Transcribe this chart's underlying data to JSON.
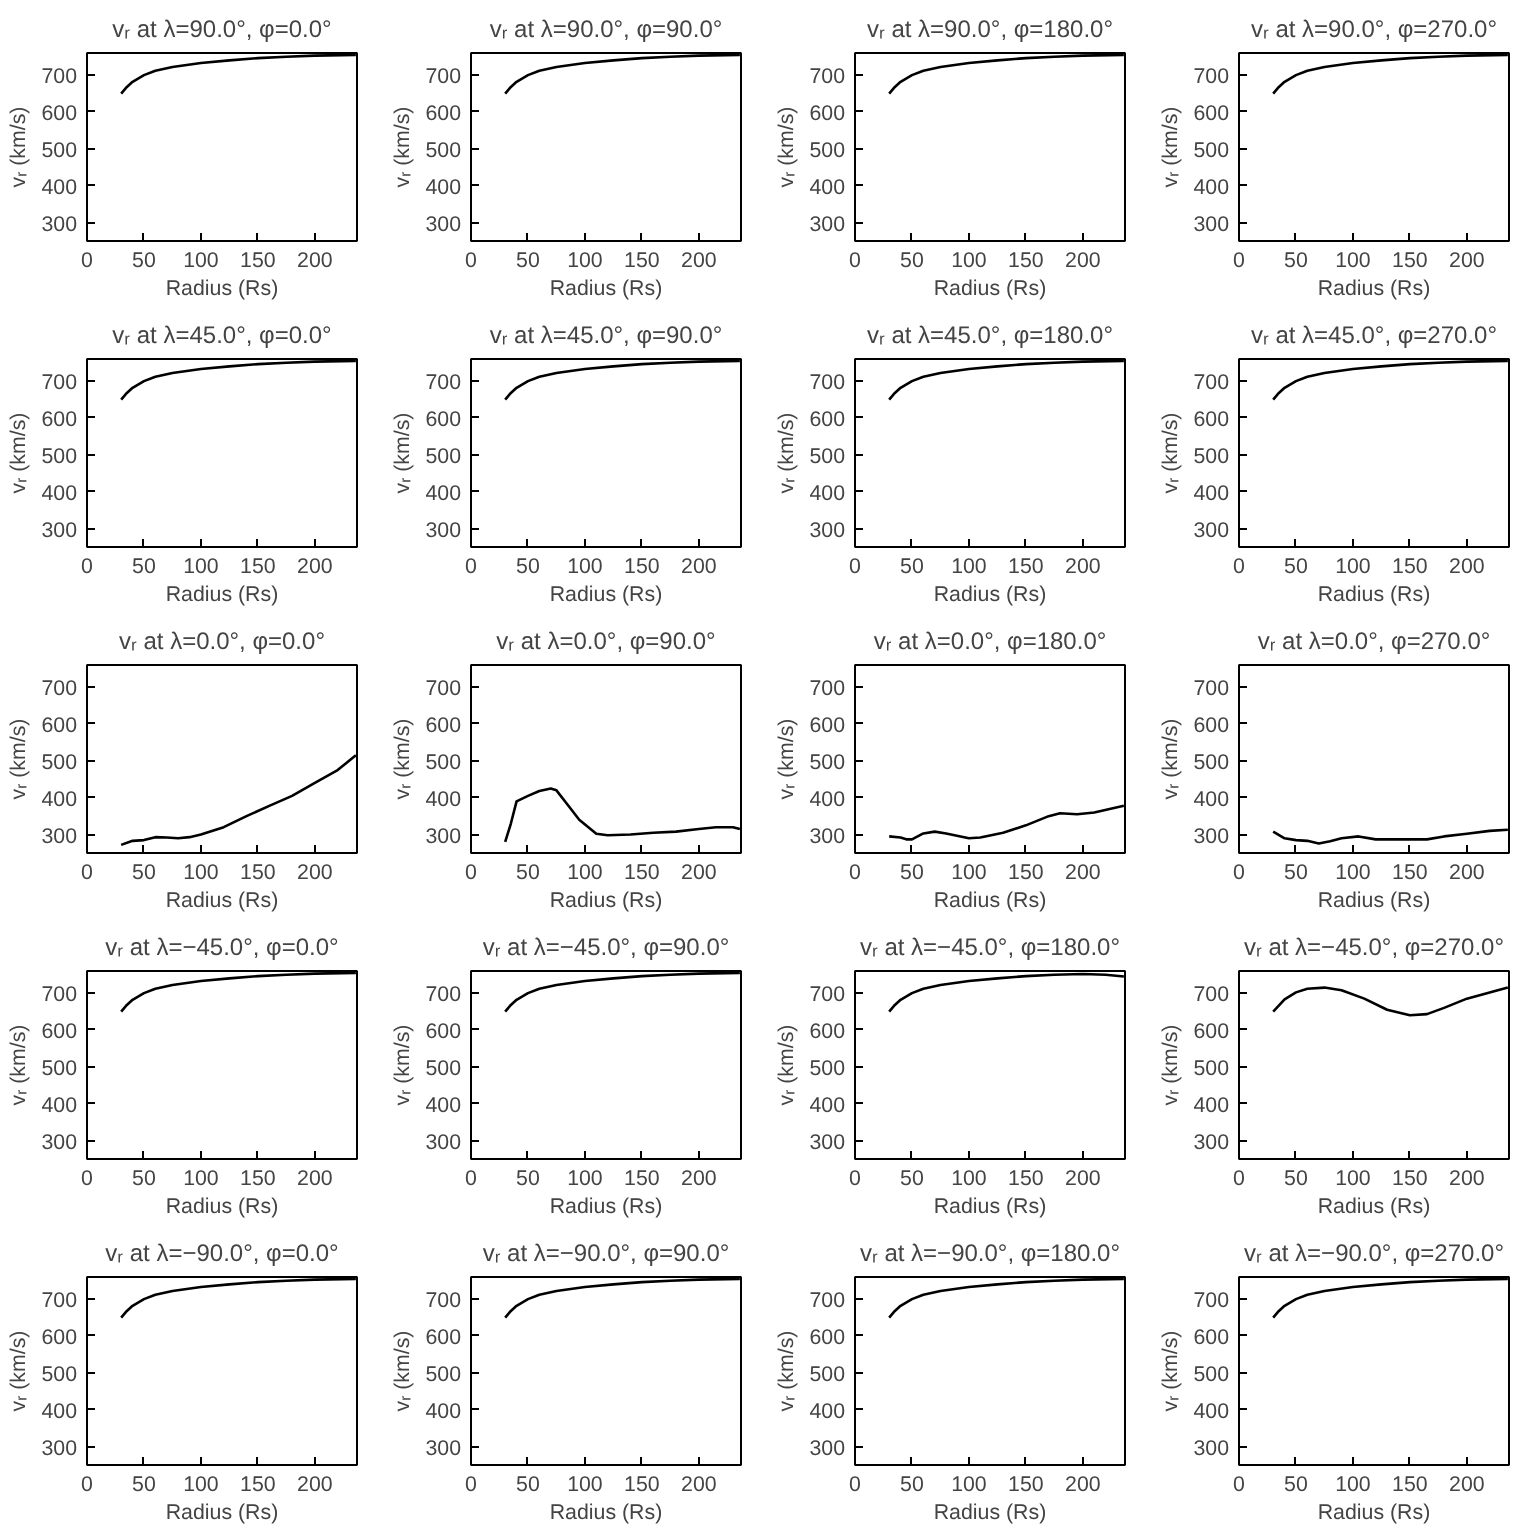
{
  "chart_data": [
    {
      "type": "line",
      "title": "vᵣ at λ=90.0°, φ=0.0°",
      "xlabel": "Radius (Rs)",
      "ylabel": "vᵣ (km/s)",
      "color": "#000000",
      "xlim": [
        0,
        237
      ],
      "ylim": [
        250,
        760
      ],
      "xticks": [
        0,
        50,
        100,
        150,
        200
      ],
      "yticks": [
        300,
        400,
        500,
        600,
        700
      ],
      "x": [
        30,
        35,
        40,
        50,
        60,
        75,
        100,
        125,
        150,
        175,
        200,
        236
      ],
      "values": [
        650,
        668,
        682,
        700,
        712,
        722,
        733,
        740,
        746,
        750,
        753,
        755
      ]
    },
    {
      "type": "line",
      "title": "vᵣ at λ=90.0°, φ=90.0°",
      "xlabel": "Radius (Rs)",
      "ylabel": "vᵣ (km/s)",
      "color": "#000000",
      "xlim": [
        0,
        237
      ],
      "ylim": [
        250,
        760
      ],
      "xticks": [
        0,
        50,
        100,
        150,
        200
      ],
      "yticks": [
        300,
        400,
        500,
        600,
        700
      ],
      "x": [
        30,
        35,
        40,
        50,
        60,
        75,
        100,
        125,
        150,
        175,
        200,
        236
      ],
      "values": [
        650,
        668,
        682,
        700,
        712,
        722,
        733,
        740,
        746,
        750,
        753,
        755
      ]
    },
    {
      "type": "line",
      "title": "vᵣ at λ=90.0°, φ=180.0°",
      "xlabel": "Radius (Rs)",
      "ylabel": "vᵣ (km/s)",
      "color": "#000000",
      "xlim": [
        0,
        237
      ],
      "ylim": [
        250,
        760
      ],
      "xticks": [
        0,
        50,
        100,
        150,
        200
      ],
      "yticks": [
        300,
        400,
        500,
        600,
        700
      ],
      "x": [
        30,
        35,
        40,
        50,
        60,
        75,
        100,
        125,
        150,
        175,
        200,
        236
      ],
      "values": [
        650,
        668,
        682,
        700,
        712,
        722,
        733,
        740,
        746,
        750,
        753,
        755
      ]
    },
    {
      "type": "line",
      "title": "vᵣ at λ=90.0°, φ=270.0°",
      "xlabel": "Radius (Rs)",
      "ylabel": "vᵣ (km/s)",
      "color": "#000000",
      "xlim": [
        0,
        237
      ],
      "ylim": [
        250,
        760
      ],
      "xticks": [
        0,
        50,
        100,
        150,
        200
      ],
      "yticks": [
        300,
        400,
        500,
        600,
        700
      ],
      "x": [
        30,
        35,
        40,
        50,
        60,
        75,
        100,
        125,
        150,
        175,
        200,
        236
      ],
      "values": [
        650,
        668,
        682,
        700,
        712,
        722,
        733,
        740,
        746,
        750,
        753,
        755
      ]
    },
    {
      "type": "line",
      "title": "vᵣ at λ=45.0°, φ=0.0°",
      "xlabel": "Radius (Rs)",
      "ylabel": "vᵣ (km/s)",
      "color": "#000000",
      "xlim": [
        0,
        237
      ],
      "ylim": [
        250,
        760
      ],
      "xticks": [
        0,
        50,
        100,
        150,
        200
      ],
      "yticks": [
        300,
        400,
        500,
        600,
        700
      ],
      "x": [
        30,
        35,
        40,
        50,
        60,
        75,
        100,
        125,
        150,
        175,
        200,
        236
      ],
      "values": [
        650,
        668,
        682,
        700,
        712,
        722,
        733,
        740,
        746,
        750,
        753,
        755
      ]
    },
    {
      "type": "line",
      "title": "vᵣ at λ=45.0°, φ=90.0°",
      "xlabel": "Radius (Rs)",
      "ylabel": "vᵣ (km/s)",
      "color": "#000000",
      "xlim": [
        0,
        237
      ],
      "ylim": [
        250,
        760
      ],
      "xticks": [
        0,
        50,
        100,
        150,
        200
      ],
      "yticks": [
        300,
        400,
        500,
        600,
        700
      ],
      "x": [
        30,
        35,
        40,
        50,
        60,
        75,
        100,
        125,
        150,
        175,
        200,
        236
      ],
      "values": [
        650,
        668,
        682,
        700,
        712,
        722,
        733,
        740,
        746,
        750,
        753,
        755
      ]
    },
    {
      "type": "line",
      "title": "vᵣ at λ=45.0°, φ=180.0°",
      "xlabel": "Radius (Rs)",
      "ylabel": "vᵣ (km/s)",
      "color": "#000000",
      "xlim": [
        0,
        237
      ],
      "ylim": [
        250,
        760
      ],
      "xticks": [
        0,
        50,
        100,
        150,
        200
      ],
      "yticks": [
        300,
        400,
        500,
        600,
        700
      ],
      "x": [
        30,
        35,
        40,
        50,
        60,
        75,
        100,
        125,
        150,
        175,
        200,
        236
      ],
      "values": [
        650,
        668,
        682,
        700,
        712,
        722,
        733,
        740,
        746,
        750,
        753,
        755
      ]
    },
    {
      "type": "line",
      "title": "vᵣ at λ=45.0°, φ=270.0°",
      "xlabel": "Radius (Rs)",
      "ylabel": "vᵣ (km/s)",
      "color": "#000000",
      "xlim": [
        0,
        237
      ],
      "ylim": [
        250,
        760
      ],
      "xticks": [
        0,
        50,
        100,
        150,
        200
      ],
      "yticks": [
        300,
        400,
        500,
        600,
        700
      ],
      "x": [
        30,
        35,
        40,
        50,
        60,
        75,
        100,
        125,
        150,
        175,
        200,
        236
      ],
      "values": [
        650,
        668,
        682,
        700,
        712,
        722,
        733,
        740,
        746,
        750,
        753,
        755
      ]
    },
    {
      "type": "line",
      "title": "vᵣ at λ=0.0°, φ=0.0°",
      "xlabel": "Radius (Rs)",
      "ylabel": "vᵣ (km/s)",
      "color": "#000000",
      "xlim": [
        0,
        237
      ],
      "ylim": [
        250,
        760
      ],
      "xticks": [
        0,
        50,
        100,
        150,
        200
      ],
      "yticks": [
        300,
        400,
        500,
        600,
        700
      ],
      "x": [
        30,
        40,
        50,
        60,
        70,
        80,
        90,
        100,
        120,
        140,
        160,
        180,
        200,
        220,
        236
      ],
      "values": [
        272,
        283,
        285,
        293,
        292,
        290,
        293,
        300,
        320,
        350,
        378,
        405,
        440,
        475,
        515
      ]
    },
    {
      "type": "line",
      "title": "vᵣ at λ=0.0°, φ=90.0°",
      "xlabel": "Radius (Rs)",
      "ylabel": "vᵣ (km/s)",
      "color": "#000000",
      "xlim": [
        0,
        237
      ],
      "ylim": [
        250,
        760
      ],
      "xticks": [
        0,
        50,
        100,
        150,
        200
      ],
      "yticks": [
        300,
        400,
        500,
        600,
        700
      ],
      "x": [
        30,
        35,
        40,
        50,
        60,
        70,
        75,
        85,
        95,
        110,
        120,
        140,
        160,
        180,
        200,
        215,
        230,
        236
      ],
      "values": [
        280,
        330,
        390,
        405,
        418,
        425,
        420,
        380,
        340,
        302,
        298,
        300,
        305,
        308,
        315,
        320,
        320,
        315
      ]
    },
    {
      "type": "line",
      "title": "vᵣ at λ=0.0°, φ=180.0°",
      "xlabel": "Radius (Rs)",
      "ylabel": "vᵣ (km/s)",
      "color": "#000000",
      "xlim": [
        0,
        237
      ],
      "ylim": [
        250,
        760
      ],
      "xticks": [
        0,
        50,
        100,
        150,
        200
      ],
      "yticks": [
        300,
        400,
        500,
        600,
        700
      ],
      "x": [
        30,
        40,
        45,
        50,
        60,
        70,
        80,
        100,
        110,
        130,
        150,
        170,
        180,
        195,
        210,
        236
      ],
      "values": [
        295,
        292,
        287,
        287,
        303,
        308,
        303,
        290,
        292,
        305,
        325,
        350,
        358,
        355,
        360,
        378
      ]
    },
    {
      "type": "line",
      "title": "vᵣ at λ=0.0°, φ=270.0°",
      "xlabel": "Radius (Rs)",
      "ylabel": "vᵣ (km/s)",
      "color": "#000000",
      "xlim": [
        0,
        237
      ],
      "ylim": [
        250,
        760
      ],
      "xticks": [
        0,
        50,
        100,
        150,
        200
      ],
      "yticks": [
        300,
        400,
        500,
        600,
        700
      ],
      "x": [
        30,
        40,
        50,
        60,
        70,
        80,
        90,
        105,
        120,
        150,
        165,
        180,
        200,
        220,
        236
      ],
      "values": [
        308,
        290,
        285,
        283,
        276,
        282,
        290,
        295,
        287,
        287,
        287,
        295,
        302,
        310,
        313
      ]
    },
    {
      "type": "line",
      "title": "vᵣ at λ=−45.0°, φ=0.0°",
      "xlabel": "Radius (Rs)",
      "ylabel": "vᵣ (km/s)",
      "color": "#000000",
      "xlim": [
        0,
        237
      ],
      "ylim": [
        250,
        760
      ],
      "xticks": [
        0,
        50,
        100,
        150,
        200
      ],
      "yticks": [
        300,
        400,
        500,
        600,
        700
      ],
      "x": [
        30,
        35,
        40,
        50,
        60,
        75,
        100,
        125,
        150,
        175,
        200,
        236
      ],
      "values": [
        650,
        668,
        682,
        700,
        712,
        722,
        733,
        740,
        746,
        750,
        753,
        755
      ]
    },
    {
      "type": "line",
      "title": "vᵣ at λ=−45.0°, φ=90.0°",
      "xlabel": "Radius (Rs)",
      "ylabel": "vᵣ (km/s)",
      "color": "#000000",
      "xlim": [
        0,
        237
      ],
      "ylim": [
        250,
        760
      ],
      "xticks": [
        0,
        50,
        100,
        150,
        200
      ],
      "yticks": [
        300,
        400,
        500,
        600,
        700
      ],
      "x": [
        30,
        35,
        40,
        50,
        60,
        75,
        100,
        125,
        150,
        175,
        200,
        236
      ],
      "values": [
        650,
        668,
        682,
        700,
        712,
        722,
        733,
        740,
        746,
        750,
        753,
        755
      ]
    },
    {
      "type": "line",
      "title": "vᵣ at λ=−45.0°, φ=180.0°",
      "xlabel": "Radius (Rs)",
      "ylabel": "vᵣ (km/s)",
      "color": "#000000",
      "xlim": [
        0,
        237
      ],
      "ylim": [
        250,
        760
      ],
      "xticks": [
        0,
        50,
        100,
        150,
        200
      ],
      "yticks": [
        300,
        400,
        500,
        600,
        700
      ],
      "x": [
        30,
        35,
        40,
        50,
        60,
        75,
        100,
        125,
        150,
        175,
        200,
        220,
        236
      ],
      "values": [
        650,
        668,
        682,
        700,
        712,
        722,
        733,
        740,
        746,
        750,
        752,
        750,
        745
      ]
    },
    {
      "type": "line",
      "title": "vᵣ at λ=−45.0°, φ=270.0°",
      "xlabel": "Radius (Rs)",
      "ylabel": "vᵣ (km/s)",
      "color": "#000000",
      "xlim": [
        0,
        237
      ],
      "ylim": [
        250,
        760
      ],
      "xticks": [
        0,
        50,
        100,
        150,
        200
      ],
      "yticks": [
        300,
        400,
        500,
        600,
        700
      ],
      "x": [
        30,
        40,
        50,
        60,
        75,
        90,
        110,
        130,
        150,
        165,
        180,
        200,
        220,
        236
      ],
      "values": [
        650,
        683,
        702,
        712,
        715,
        708,
        685,
        655,
        640,
        643,
        660,
        685,
        702,
        715
      ]
    },
    {
      "type": "line",
      "title": "vᵣ at λ=−90.0°, φ=0.0°",
      "xlabel": "Radius (Rs)",
      "ylabel": "vᵣ (km/s)",
      "color": "#000000",
      "xlim": [
        0,
        237
      ],
      "ylim": [
        250,
        760
      ],
      "xticks": [
        0,
        50,
        100,
        150,
        200
      ],
      "yticks": [
        300,
        400,
        500,
        600,
        700
      ],
      "x": [
        30,
        35,
        40,
        50,
        60,
        75,
        100,
        125,
        150,
        175,
        200,
        236
      ],
      "values": [
        650,
        668,
        682,
        700,
        712,
        722,
        733,
        740,
        746,
        750,
        753,
        755
      ]
    },
    {
      "type": "line",
      "title": "vᵣ at λ=−90.0°, φ=90.0°",
      "xlabel": "Radius (Rs)",
      "ylabel": "vᵣ (km/s)",
      "color": "#000000",
      "xlim": [
        0,
        237
      ],
      "ylim": [
        250,
        760
      ],
      "xticks": [
        0,
        50,
        100,
        150,
        200
      ],
      "yticks": [
        300,
        400,
        500,
        600,
        700
      ],
      "x": [
        30,
        35,
        40,
        50,
        60,
        75,
        100,
        125,
        150,
        175,
        200,
        236
      ],
      "values": [
        650,
        668,
        682,
        700,
        712,
        722,
        733,
        740,
        746,
        750,
        753,
        755
      ]
    },
    {
      "type": "line",
      "title": "vᵣ at λ=−90.0°, φ=180.0°",
      "xlabel": "Radius (Rs)",
      "ylabel": "vᵣ (km/s)",
      "color": "#000000",
      "xlim": [
        0,
        237
      ],
      "ylim": [
        250,
        760
      ],
      "xticks": [
        0,
        50,
        100,
        150,
        200
      ],
      "yticks": [
        300,
        400,
        500,
        600,
        700
      ],
      "x": [
        30,
        35,
        40,
        50,
        60,
        75,
        100,
        125,
        150,
        175,
        200,
        236
      ],
      "values": [
        650,
        668,
        682,
        700,
        712,
        722,
        733,
        740,
        746,
        750,
        753,
        755
      ]
    },
    {
      "type": "line",
      "title": "vᵣ at λ=−90.0°, φ=270.0°",
      "xlabel": "Radius (Rs)",
      "ylabel": "vᵣ (km/s)",
      "color": "#000000",
      "xlim": [
        0,
        237
      ],
      "ylim": [
        250,
        760
      ],
      "xticks": [
        0,
        50,
        100,
        150,
        200
      ],
      "yticks": [
        300,
        400,
        500,
        600,
        700
      ],
      "x": [
        30,
        35,
        40,
        50,
        60,
        75,
        100,
        125,
        150,
        175,
        200,
        236
      ],
      "values": [
        650,
        668,
        682,
        700,
        712,
        722,
        733,
        740,
        746,
        750,
        753,
        755
      ]
    }
  ]
}
